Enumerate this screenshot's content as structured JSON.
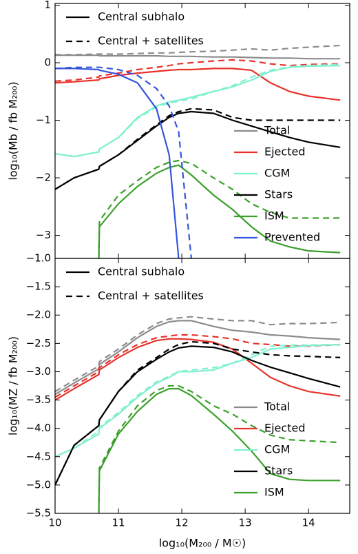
{
  "chart_data": [
    {
      "type": "line",
      "ylabel": "log₁₀(Mb / fb M₂₀₀)",
      "x": [
        10,
        10.3,
        10.69,
        10.7,
        11,
        11.3,
        11.6,
        11.8,
        11.95,
        12.15,
        12.5,
        12.8,
        13.1,
        13.4,
        13.7,
        14,
        14.5
      ],
      "xlim": [
        10,
        14.65
      ],
      "ylim": [
        -3.4,
        1.03
      ],
      "yticks": [
        1,
        0,
        {
          "value": -1,
          "label": "−1"
        },
        {
          "value": -2,
          "label": "−2"
        },
        {
          "value": -3,
          "label": "−3"
        }
      ],
      "style_legend": [
        "Central subhalo",
        "Central + satellites"
      ],
      "series": [
        {
          "name": "Total",
          "color": "#8c8c8c",
          "values": [
            0.13,
            0.13,
            0.13,
            0.12,
            0.12,
            0.12,
            0.12,
            0.11,
            0.11,
            0.11,
            0.1,
            0.1,
            0.09,
            0.08,
            0.08,
            0.07,
            0.07
          ],
          "values_with_satellites": [
            0.14,
            0.14,
            0.15,
            0.15,
            0.15,
            0.16,
            0.17,
            0.17,
            0.18,
            0.19,
            0.2,
            0.22,
            0.24,
            0.22,
            0.25,
            0.27,
            0.3
          ]
        },
        {
          "name": "Ejected",
          "color": "#e8312a",
          "values": [
            -0.35,
            -0.33,
            -0.3,
            -0.28,
            -0.22,
            -0.18,
            -0.15,
            -0.13,
            -0.12,
            -0.12,
            -0.1,
            -0.1,
            -0.13,
            -0.35,
            -0.5,
            -0.58,
            -0.65
          ],
          "values_with_satellites": [
            -0.32,
            -0.3,
            -0.25,
            -0.23,
            -0.18,
            -0.12,
            -0.08,
            -0.05,
            -0.02,
            0,
            0.03,
            0.05,
            0.03,
            -0.02,
            -0.05,
            -0.03,
            -0.02
          ]
        },
        {
          "name": "CGM",
          "color": "#7ff0d0",
          "values": [
            -1.58,
            -1.63,
            -1.55,
            -1.5,
            -1.3,
            -0.95,
            -0.75,
            -0.68,
            -0.65,
            -0.6,
            -0.5,
            -0.42,
            -0.3,
            -0.15,
            -0.08,
            -0.06,
            -0.05
          ],
          "values_with_satellites": [
            -1.58,
            -1.63,
            -1.55,
            -1.5,
            -1.3,
            -0.97,
            -0.77,
            -0.7,
            -0.67,
            -0.63,
            -0.5,
            -0.4,
            -0.25,
            -0.13,
            -0.07,
            -0.05,
            -0.03
          ]
        },
        {
          "name": "Stars",
          "color": "#000000",
          "values": [
            -2.2,
            -2.0,
            -1.85,
            -1.8,
            -1.6,
            -1.35,
            -1.1,
            -0.95,
            -0.88,
            -0.85,
            -0.88,
            -1.0,
            -1.1,
            -1.2,
            -1.3,
            -1.38,
            -1.47
          ],
          "values_with_satellites": [
            -2.2,
            -2.0,
            -1.85,
            -1.8,
            -1.6,
            -1.33,
            -1.08,
            -0.92,
            -0.85,
            -0.8,
            -0.82,
            -0.95,
            -1.0,
            -1.0,
            -1.0,
            -1.0,
            -1.0
          ]
        },
        {
          "name": "ISM",
          "color": "#3aa02a",
          "values": [
            null,
            null,
            -3.4,
            -2.85,
            -2.45,
            -2.15,
            -1.92,
            -1.82,
            -1.78,
            -1.95,
            -2.3,
            -2.55,
            -2.85,
            -3.1,
            -3.2,
            -3.27,
            -3.3
          ],
          "values_with_satellites": [
            null,
            null,
            -3.4,
            -2.75,
            -2.3,
            -2.05,
            -1.82,
            -1.73,
            -1.7,
            -1.75,
            -2.0,
            -2.2,
            -2.45,
            -2.6,
            -2.7,
            -2.7,
            -2.7
          ]
        },
        {
          "name": "Prevented",
          "color": "#3355dd",
          "values": [
            -0.1,
            -0.1,
            -0.12,
            -0.13,
            -0.2,
            -0.35,
            -0.8,
            -1.6,
            -3.4,
            null,
            null,
            null,
            null,
            null,
            null,
            null,
            null
          ],
          "values_with_satellites": [
            -0.1,
            -0.08,
            -0.08,
            -0.08,
            -0.12,
            -0.22,
            -0.45,
            -0.75,
            -1.2,
            -3.4,
            null,
            null,
            null,
            null,
            null,
            null,
            null
          ]
        }
      ]
    },
    {
      "type": "line",
      "ylabel": "log₁₀(MZ / fb M₂₀₀)",
      "xlabel": "log₁₀(M₂₀₀ / M☉)",
      "x": [
        10,
        10.3,
        10.69,
        10.7,
        11,
        11.3,
        11.6,
        11.8,
        11.95,
        12.15,
        12.5,
        12.8,
        13.1,
        13.4,
        13.7,
        14,
        14.5
      ],
      "xlim": [
        10,
        14.65
      ],
      "xticks": [
        10,
        11,
        12,
        13,
        14
      ],
      "ylim": [
        -5.5,
        -1.0
      ],
      "yticks": [
        {
          "value": -1.0,
          "label": "−1.0"
        },
        {
          "value": -1.5,
          "label": "−1.5"
        },
        {
          "value": -2.0,
          "label": "−2.0"
        },
        {
          "value": -2.5,
          "label": "−2.5"
        },
        {
          "value": -3.0,
          "label": "−3.0"
        },
        {
          "value": -3.5,
          "label": "−3.5"
        },
        {
          "value": -4.0,
          "label": "−4.0"
        },
        {
          "value": -4.5,
          "label": "−4.5"
        },
        {
          "value": -5.0,
          "label": "−5.0"
        },
        {
          "value": -5.5,
          "label": "−5.5"
        }
      ],
      "style_legend": [
        "Central subhalo",
        "Central + satellites"
      ],
      "series": [
        {
          "name": "Total",
          "color": "#8c8c8c",
          "values": [
            -3.4,
            -3.2,
            -2.95,
            -2.87,
            -2.65,
            -2.4,
            -2.2,
            -2.12,
            -2.1,
            -2.1,
            -2.2,
            -2.27,
            -2.3,
            -2.35,
            -2.37,
            -2.4,
            -2.43
          ],
          "values_with_satellites": [
            -3.35,
            -3.15,
            -2.9,
            -2.82,
            -2.6,
            -2.35,
            -2.15,
            -2.07,
            -2.05,
            -2.03,
            -2.07,
            -2.1,
            -2.1,
            -2.17,
            -2.15,
            -2.15,
            -2.13
          ]
        },
        {
          "name": "Ejected",
          "color": "#e8312a",
          "values": [
            -3.5,
            -3.3,
            -3.05,
            -2.97,
            -2.75,
            -2.57,
            -2.45,
            -2.42,
            -2.42,
            -2.43,
            -2.48,
            -2.6,
            -2.85,
            -3.1,
            -3.25,
            -3.35,
            -3.43
          ],
          "values_with_satellites": [
            -3.45,
            -3.25,
            -3.0,
            -2.93,
            -2.7,
            -2.52,
            -2.4,
            -2.37,
            -2.35,
            -2.35,
            -2.38,
            -2.42,
            -2.5,
            -2.52,
            -2.55,
            -2.55,
            -2.52
          ]
        },
        {
          "name": "CGM",
          "color": "#7ff0d0",
          "values": [
            -4.5,
            -4.35,
            -4.1,
            -4.0,
            -3.75,
            -3.45,
            -3.2,
            -3.1,
            -3.0,
            -3.0,
            -2.97,
            -2.85,
            -2.75,
            -2.6,
            -2.57,
            -2.54,
            -2.52
          ],
          "values_with_satellites": [
            -4.5,
            -4.35,
            -4.05,
            -3.98,
            -3.72,
            -3.42,
            -3.18,
            -3.08,
            -3.0,
            -2.97,
            -2.93,
            -2.85,
            -2.7,
            -2.55,
            -2.53,
            -2.53,
            -2.52
          ]
        },
        {
          "name": "Stars",
          "color": "#000000",
          "values": [
            -5.0,
            -4.3,
            -3.95,
            -3.85,
            -3.35,
            -3.0,
            -2.78,
            -2.65,
            -2.58,
            -2.55,
            -2.57,
            -2.65,
            -2.8,
            -2.92,
            -3.02,
            -3.12,
            -3.27
          ],
          "values_with_satellites": [
            -5.0,
            -4.3,
            -3.95,
            -3.85,
            -3.35,
            -2.97,
            -2.75,
            -2.6,
            -2.52,
            -2.47,
            -2.5,
            -2.6,
            -2.65,
            -2.7,
            -2.72,
            -2.73,
            -2.75
          ]
        },
        {
          "name": "ISM",
          "color": "#3aa02a",
          "values": [
            null,
            null,
            -5.5,
            -4.75,
            -4.1,
            -3.7,
            -3.4,
            -3.3,
            -3.3,
            -3.42,
            -3.75,
            -4.05,
            -4.4,
            -4.8,
            -4.9,
            -4.92,
            -4.92
          ],
          "values_with_satellites": [
            null,
            null,
            -5.5,
            -4.7,
            -4.05,
            -3.6,
            -3.33,
            -3.25,
            -3.25,
            -3.35,
            -3.6,
            -3.75,
            -3.95,
            -4.12,
            -4.2,
            -4.22,
            -4.25
          ]
        }
      ]
    }
  ]
}
